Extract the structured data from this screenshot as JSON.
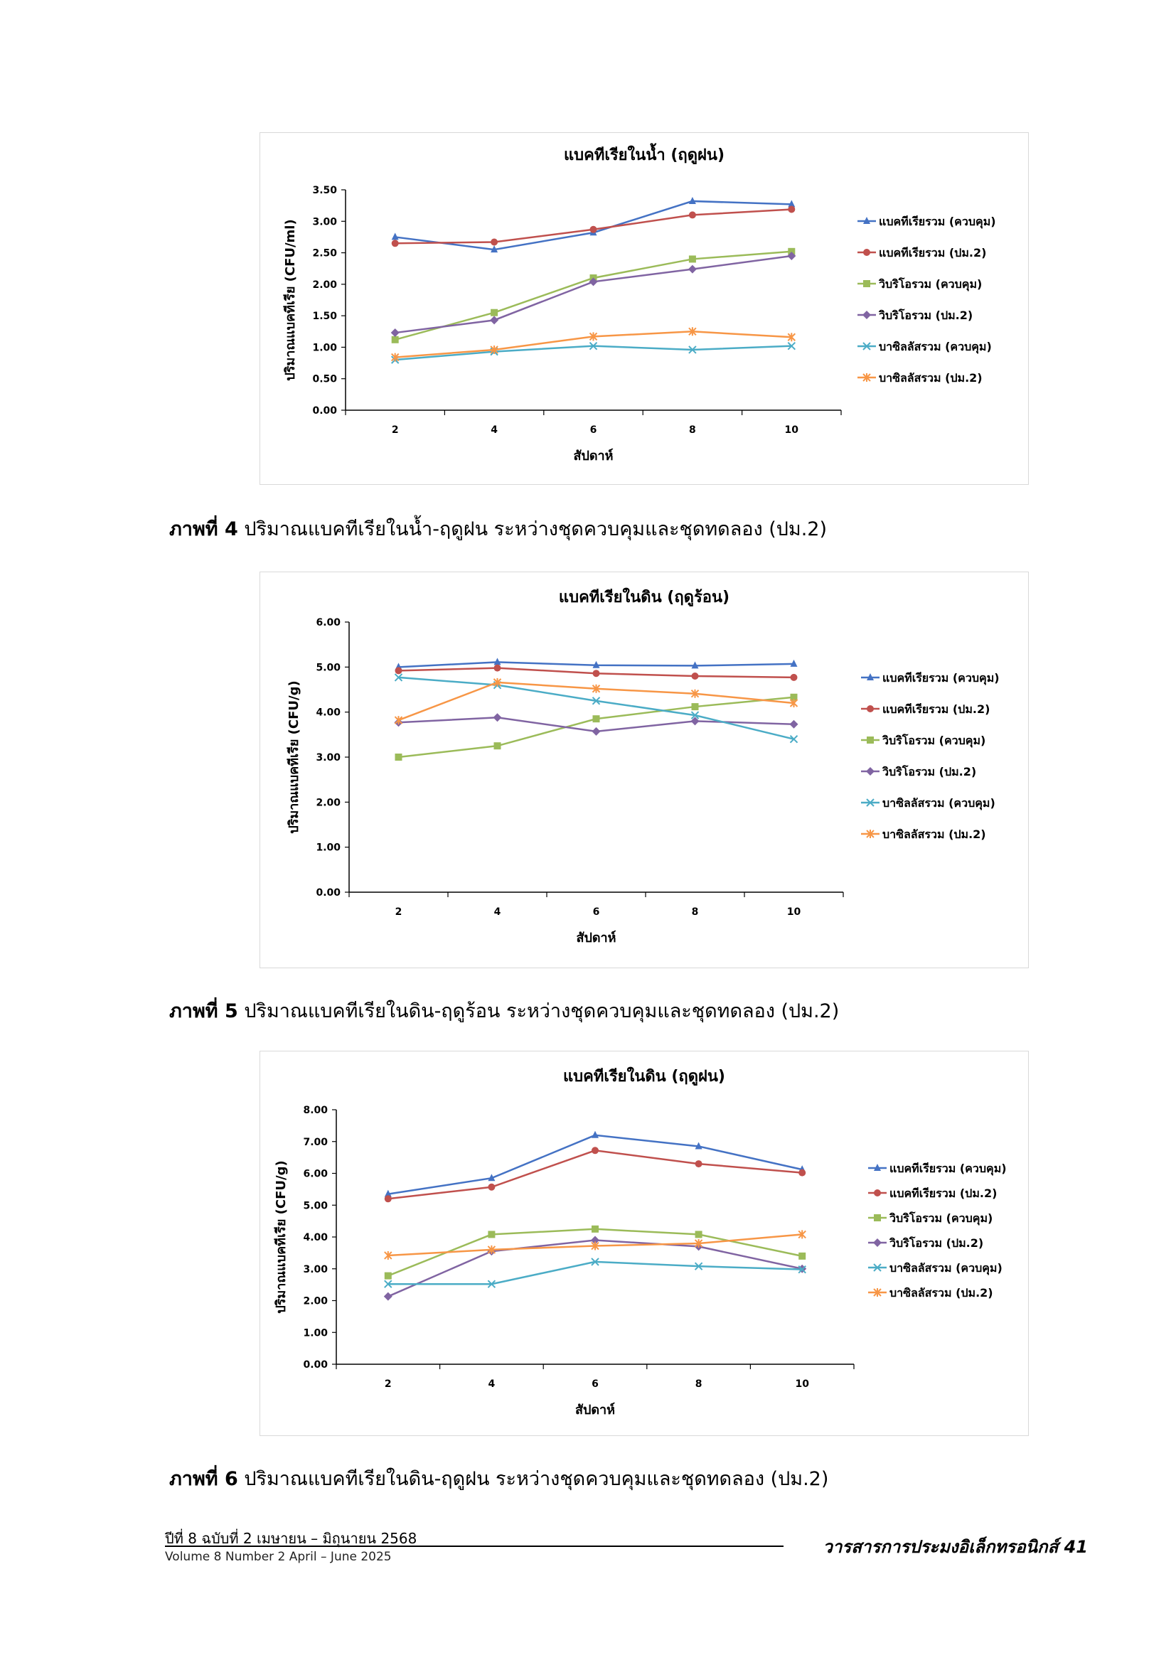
{
  "chart_data": [
    {
      "type": "line",
      "title": "แบคทีเรียในน้ำ (ฤดูฝน)",
      "xlabel": "สัปดาห์",
      "ylabel": "ปริมาณแบคทีเรีย (CFU/ml)",
      "x": [
        2,
        4,
        6,
        8,
        10
      ],
      "xticks": [
        "2",
        "4",
        "6",
        "8",
        "10"
      ],
      "ylim": [
        0,
        3.5
      ],
      "yticks": [
        "0.00",
        "0.50",
        "1.00",
        "1.50",
        "2.00",
        "2.50",
        "3.00",
        "3.50"
      ],
      "legend_position": "right",
      "series": [
        {
          "name": "แบคทีเรียรวม (ควบคุม)",
          "color": "#4472C4",
          "marker": "triangle",
          "values": [
            2.75,
            2.55,
            2.82,
            3.32,
            3.27
          ]
        },
        {
          "name": "แบคทีเรียรวม (ปม.2)",
          "color": "#C0504D",
          "marker": "circle",
          "values": [
            2.65,
            2.67,
            2.87,
            3.1,
            3.19
          ]
        },
        {
          "name": "วิบริโอรวม (ควบคุม)",
          "color": "#9BBB59",
          "marker": "square",
          "values": [
            1.12,
            1.55,
            2.1,
            2.4,
            2.52
          ]
        },
        {
          "name": "วิบริโอรวม (ปม.2)",
          "color": "#8064A2",
          "marker": "diamond",
          "values": [
            1.23,
            1.43,
            2.04,
            2.24,
            2.45
          ]
        },
        {
          "name": "บาซิลลัสรวม (ควบคุม)",
          "color": "#4BACC6",
          "marker": "x",
          "values": [
            0.8,
            0.93,
            1.02,
            0.96,
            1.02
          ]
        },
        {
          "name": "บาซิลลัสรวม (ปม.2)",
          "color": "#F79646",
          "marker": "star",
          "values": [
            0.84,
            0.96,
            1.17,
            1.25,
            1.16
          ]
        }
      ]
    },
    {
      "type": "line",
      "title": "แบคทีเรียในดิน (ฤดูร้อน)",
      "xlabel": "สัปดาห์",
      "ylabel": "ปริมาณแบคทีเรีย (CFU/g)",
      "x": [
        2,
        4,
        6,
        8,
        10
      ],
      "xticks": [
        "2",
        "4",
        "6",
        "8",
        "10"
      ],
      "ylim": [
        0,
        6
      ],
      "yticks": [
        "0.00",
        "1.00",
        "2.00",
        "3.00",
        "4.00",
        "5.00",
        "6.00"
      ],
      "legend_position": "right",
      "series": [
        {
          "name": "แบคทีเรียรวม (ควบคุม)",
          "color": "#4472C4",
          "marker": "triangle",
          "values": [
            5.0,
            5.11,
            5.04,
            5.03,
            5.07
          ]
        },
        {
          "name": "แบคทีเรียรวม (ปม.2)",
          "color": "#C0504D",
          "marker": "circle",
          "values": [
            4.92,
            4.98,
            4.86,
            4.8,
            4.77
          ]
        },
        {
          "name": "วิบริโอรวม (ควบคุม)",
          "color": "#9BBB59",
          "marker": "square",
          "values": [
            3.0,
            3.25,
            3.85,
            4.12,
            4.33
          ]
        },
        {
          "name": "วิบริโอรวม (ปม.2)",
          "color": "#8064A2",
          "marker": "diamond",
          "values": [
            3.77,
            3.88,
            3.57,
            3.8,
            3.73
          ]
        },
        {
          "name": "บาซิลลัสรวม (ควบคุม)",
          "color": "#4BACC6",
          "marker": "x",
          "values": [
            4.77,
            4.6,
            4.25,
            3.93,
            3.4
          ]
        },
        {
          "name": "บาซิลลัสรวม (ปม.2)",
          "color": "#F79646",
          "marker": "star",
          "values": [
            3.82,
            4.66,
            4.52,
            4.41,
            4.2
          ]
        }
      ]
    },
    {
      "type": "line",
      "title": "แบคทีเรียในดิน (ฤดูฝน)",
      "xlabel": "สัปดาห์",
      "ylabel": "ปริมาณแบคทีเรีย (CFU/g)",
      "x": [
        2,
        4,
        6,
        8,
        10
      ],
      "xticks": [
        "2",
        "4",
        "6",
        "8",
        "10"
      ],
      "ylim": [
        0,
        8
      ],
      "yticks": [
        "0.00",
        "1.00",
        "2.00",
        "3.00",
        "4.00",
        "5.00",
        "6.00",
        "7.00",
        "8.00"
      ],
      "legend_position": "right",
      "series": [
        {
          "name": "แบคทีเรียรวม (ควบคุม)",
          "color": "#4472C4",
          "marker": "triangle",
          "values": [
            5.35,
            5.85,
            7.2,
            6.85,
            6.12
          ]
        },
        {
          "name": "แบคทีเรียรวม (ปม.2)",
          "color": "#C0504D",
          "marker": "circle",
          "values": [
            5.2,
            5.57,
            6.72,
            6.3,
            6.02
          ]
        },
        {
          "name": "วิบริโอรวม (ควบคุม)",
          "color": "#9BBB59",
          "marker": "square",
          "values": [
            2.78,
            4.08,
            4.25,
            4.08,
            3.4
          ]
        },
        {
          "name": "วิบริโอรวม (ปม.2)",
          "color": "#8064A2",
          "marker": "diamond",
          "values": [
            2.13,
            3.55,
            3.9,
            3.7,
            3.0
          ]
        },
        {
          "name": "บาซิลลัสรวม (ควบคุม)",
          "color": "#4BACC6",
          "marker": "x",
          "values": [
            2.52,
            2.52,
            3.22,
            3.08,
            2.98
          ]
        },
        {
          "name": "บาซิลลัสรวม (ปม.2)",
          "color": "#F79646",
          "marker": "star",
          "values": [
            3.42,
            3.6,
            3.72,
            3.8,
            4.08
          ]
        }
      ]
    }
  ],
  "captions": [
    {
      "label": "ภาพที่ 4",
      "text": " ปริมาณแบคทีเรียในน้ำ-ฤดูฝน ระหว่างชุดควบคุมและชุดทดลอง (ปม.2)"
    },
    {
      "label": "ภาพที่ 5",
      "text": " ปริมาณแบคทีเรียในดิน-ฤดูร้อน ระหว่างชุดควบคุมและชุดทดลอง (ปม.2)"
    },
    {
      "label": "ภาพที่ 6",
      "text": " ปริมาณแบคทีเรียในดิน-ฤดูฝน ระหว่างชุดควบคุมและชุดทดลอง (ปม.2)"
    }
  ],
  "footer": {
    "issue_th": "ปีที่ 8 ฉบับที่ 2 เมษายน – มิถุนายน 2568",
    "issue_en": "Volume 8 Number 2 April – June 2025",
    "journal": "วารสารการประมงอิเล็กทรอนิกส์",
    "page_number": "41"
  }
}
